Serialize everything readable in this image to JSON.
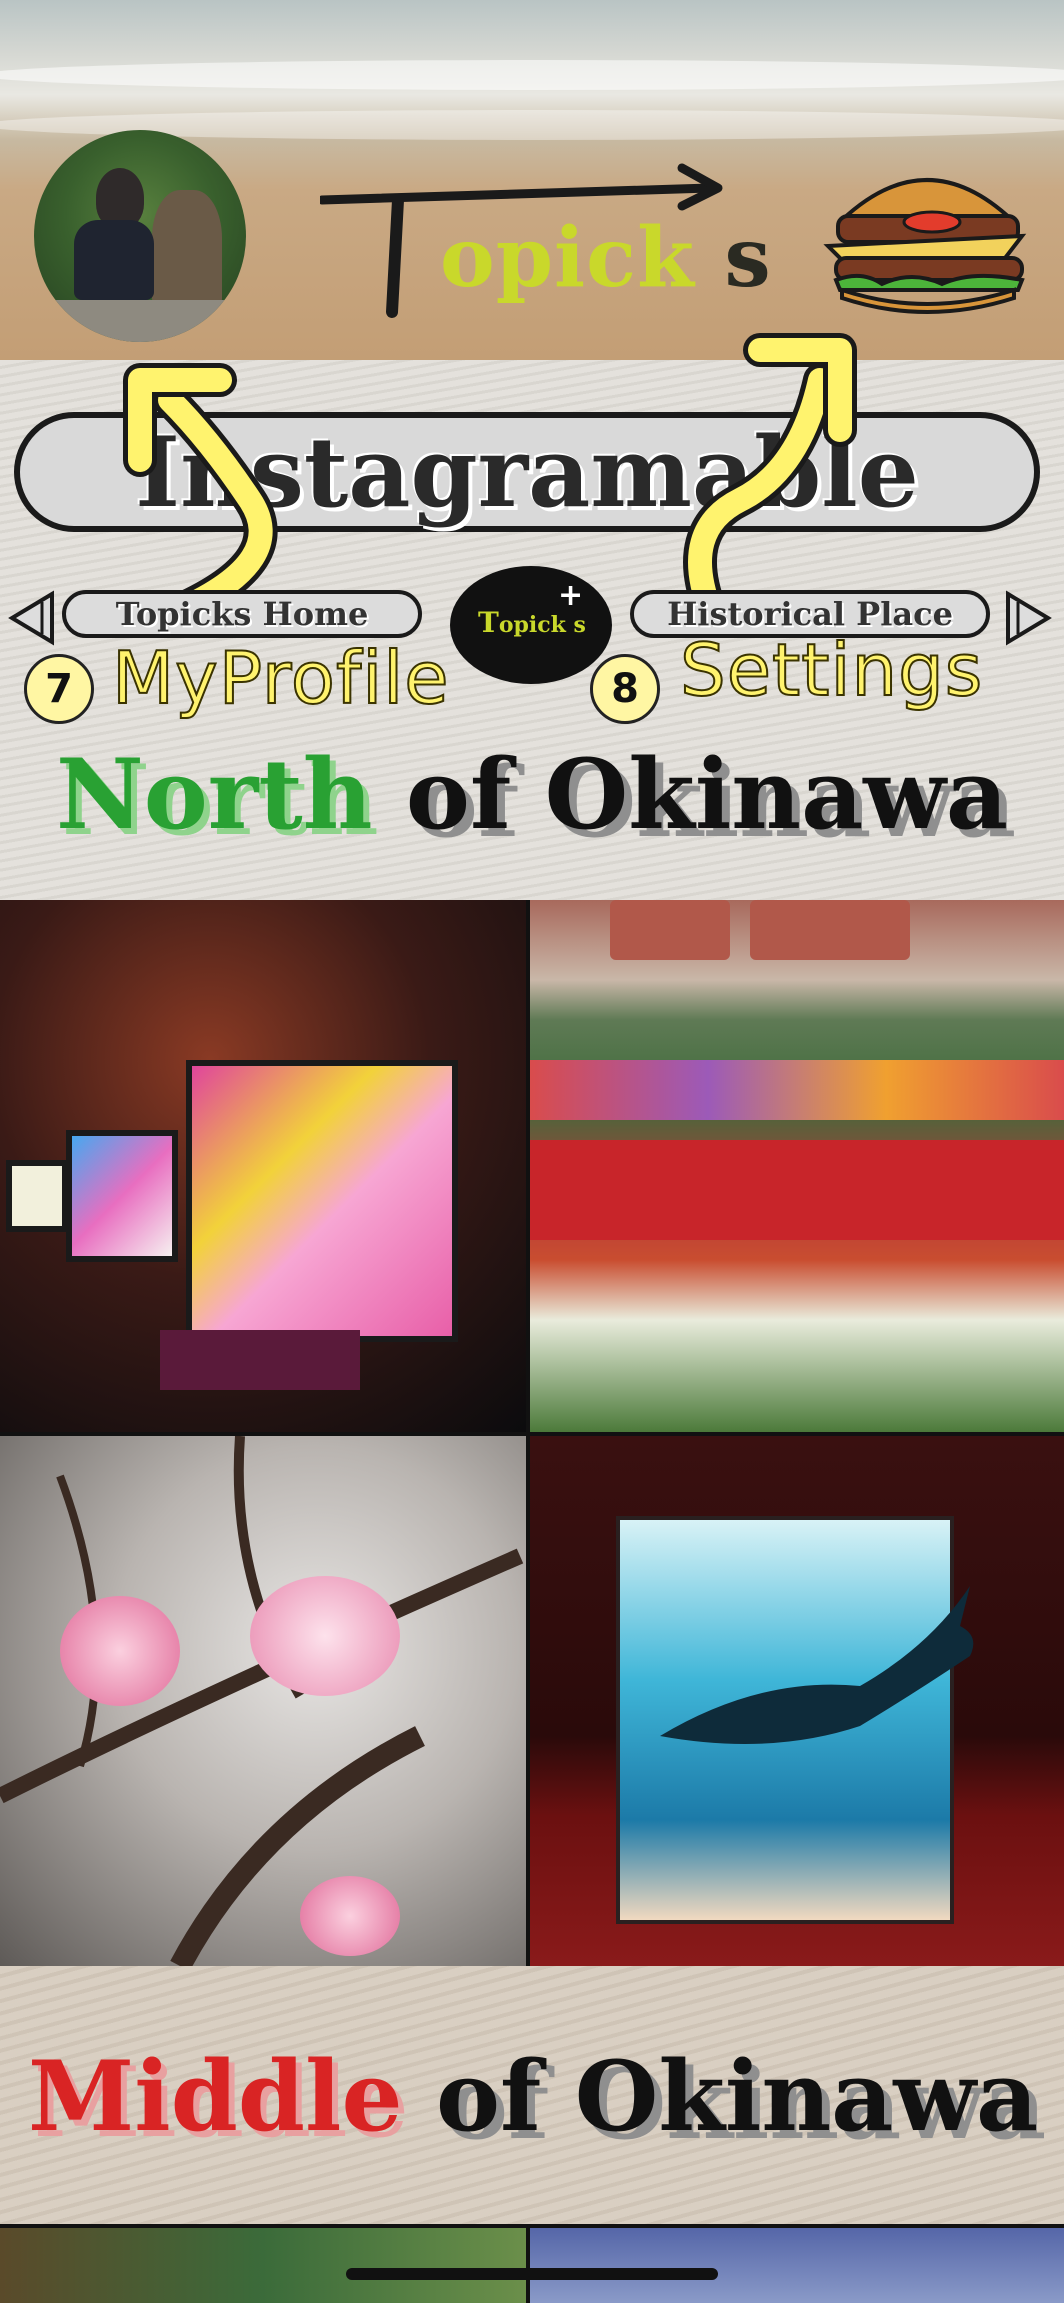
{
  "header": {
    "logo_text_main": "opick",
    "logo_text_s": "s",
    "logo_T": "T"
  },
  "banner": {
    "title": "Instagramable",
    "nav_left": "Topicks Home",
    "nav_right": "Historical Place",
    "center_logo": "opick s",
    "center_logo_T": "T",
    "center_logo_plus": "+"
  },
  "tags": [
    {
      "number": "7",
      "label": "MyProfile"
    },
    {
      "number": "8",
      "label": "Settings"
    }
  ],
  "sections": [
    {
      "colored": "North",
      "rest": "of Okinawa",
      "color": "#29a133"
    },
    {
      "colored": "Middle",
      "rest": "of Okinawa",
      "color": "#d92424"
    }
  ],
  "photos": [
    {
      "icon": "lantern-garden-photo"
    },
    {
      "icon": "flower-garden-photo"
    },
    {
      "icon": "cherry-blossom-photo"
    },
    {
      "icon": "whale-lantern-photo"
    }
  ]
}
